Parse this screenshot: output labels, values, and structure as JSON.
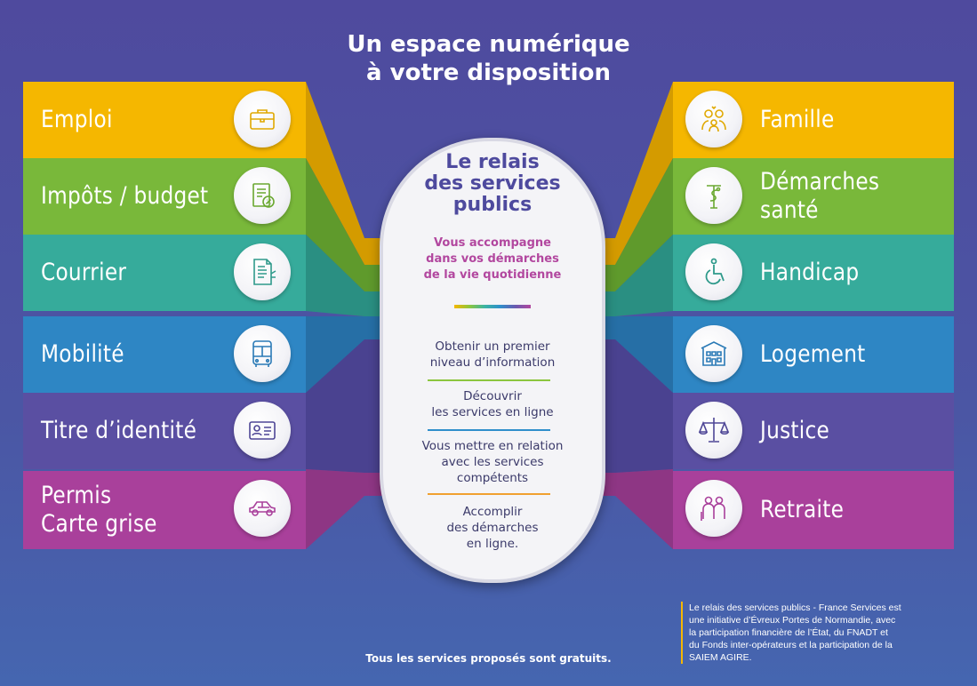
{
  "title": "Un espace numérique\nà votre disposition",
  "left_categories": [
    {
      "label": "Emploi",
      "color": "#f5b700",
      "icon": "briefcase-icon"
    },
    {
      "label": "Impôts / budget",
      "color": "#79b83a",
      "icon": "tax-document-icon"
    },
    {
      "label": "Courrier",
      "color": "#36ab9b",
      "icon": "letter-icon"
    },
    {
      "label": "Mobilité",
      "color": "#2e86c4",
      "icon": "bus-icon"
    },
    {
      "label": "Titre d’identité",
      "color": "#5a4fa2",
      "icon": "id-card-icon"
    },
    {
      "label": "Permis\nCarte grise",
      "color": "#a9409b",
      "icon": "car-icon"
    }
  ],
  "right_categories": [
    {
      "label": "Famille",
      "color": "#f5b700",
      "icon": "family-icon"
    },
    {
      "label": "Démarches\nsanté",
      "color": "#79b83a",
      "icon": "health-caduceus-icon"
    },
    {
      "label": "Handicap",
      "color": "#36ab9b",
      "icon": "wheelchair-icon"
    },
    {
      "label": "Logement",
      "color": "#2e86c4",
      "icon": "building-icon"
    },
    {
      "label": "Justice",
      "color": "#5a4fa2",
      "icon": "scales-icon"
    },
    {
      "label": "Retraite",
      "color": "#a9409b",
      "icon": "elderly-couple-icon"
    }
  ],
  "center": {
    "title": "Le relais\ndes services\npublics",
    "subtitle": "Vous accompagne\ndans vos démarches\nde la vie quotidienne",
    "items": [
      "Obtenir un premier\nniveau d’information",
      "Découvrir\nles services en ligne",
      "Vous mettre en relation\navec les services\ncompétents",
      "Accomplir\ndes démarches\nen ligne."
    ],
    "divider_colors": [
      "#8cc63f",
      "#2f8fcb",
      "#f0a030"
    ]
  },
  "footer": {
    "free_note": "Tous les services proposés sont gratuits.",
    "credits": "Le relais des services publics - France Services est\nune initiative d’Évreux Portes de Normandie, avec\nla participation financière de l’État, du FNADT et\ndu Fonds inter-opérateurs et la participation de la\nSAIEM AGIRE."
  }
}
